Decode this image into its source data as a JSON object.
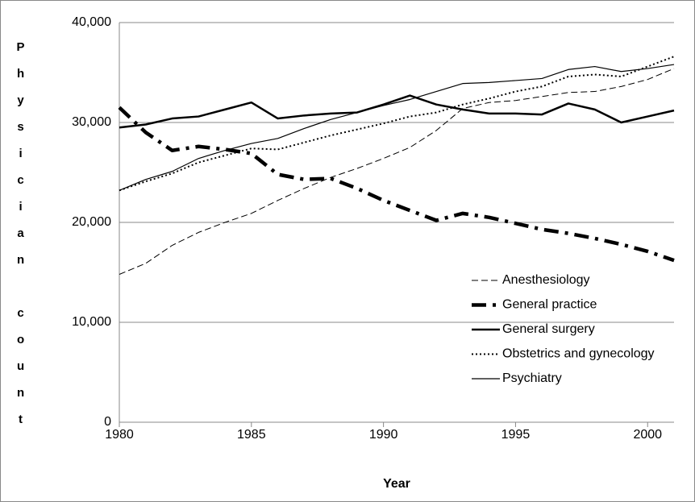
{
  "chart_data": {
    "type": "line",
    "ylabel": "Physician count",
    "xlabel": "Year",
    "x": [
      1980,
      1981,
      1982,
      1983,
      1984,
      1985,
      1986,
      1987,
      1988,
      1989,
      1990,
      1991,
      1992,
      1993,
      1994,
      1995,
      1996,
      1997,
      1998,
      1999,
      2000,
      2001
    ],
    "xlim": [
      1980,
      2001
    ],
    "xticks": [
      1980,
      1985,
      1990,
      1995,
      2000
    ],
    "ylim": [
      0,
      40000
    ],
    "yticks": [
      0,
      {
        "value": 10000,
        "label": "10,000"
      },
      {
        "value": 20000,
        "label": "20,000"
      },
      {
        "value": 30000,
        "label": "30,000"
      },
      {
        "value": 40000,
        "label": "40,000"
      }
    ],
    "grid": true,
    "legend": "right",
    "series": [
      {
        "name": "Anesthesiology",
        "color": "#000000",
        "style": "dashed",
        "values": [
          14800,
          15900,
          17700,
          19000,
          20000,
          20900,
          22200,
          23400,
          24500,
          25400,
          26400,
          27500,
          29200,
          31400,
          32000,
          32200,
          32600,
          33000,
          33100,
          33600,
          34300,
          35400
        ]
      },
      {
        "name": "General practice",
        "color": "#000000",
        "style": "dash-dot-thick",
        "values": [
          31500,
          29000,
          27200,
          27600,
          27300,
          26900,
          24800,
          24300,
          24400,
          23400,
          22200,
          21200,
          20200,
          20900,
          20500,
          19900,
          19300,
          18900,
          18400,
          17800,
          17100,
          16200
        ]
      },
      {
        "name": "General surgery",
        "color": "#000000",
        "style": "solid-thick",
        "values": [
          29500,
          29800,
          30400,
          30600,
          31300,
          32000,
          30400,
          30700,
          30900,
          31000,
          31800,
          32700,
          31800,
          31300,
          30900,
          30900,
          30800,
          31900,
          31300,
          30000,
          30600,
          31200
        ]
      },
      {
        "name": "Obstetrics and gynecology",
        "color": "#000000",
        "style": "dotted",
        "values": [
          23200,
          24100,
          24900,
          26000,
          26700,
          27400,
          27300,
          28000,
          28700,
          29300,
          29900,
          30600,
          31000,
          31800,
          32400,
          33100,
          33600,
          34600,
          34800,
          34600,
          35600,
          36600
        ]
      },
      {
        "name": "Psychiatry",
        "color": "#000000",
        "style": "solid-thin",
        "values": [
          23200,
          24300,
          25100,
          26400,
          27200,
          27900,
          28400,
          29400,
          30300,
          31000,
          31700,
          32300,
          33100,
          33900,
          34000,
          34200,
          34400,
          35300,
          35600,
          35100,
          35400,
          35800
        ]
      }
    ]
  }
}
